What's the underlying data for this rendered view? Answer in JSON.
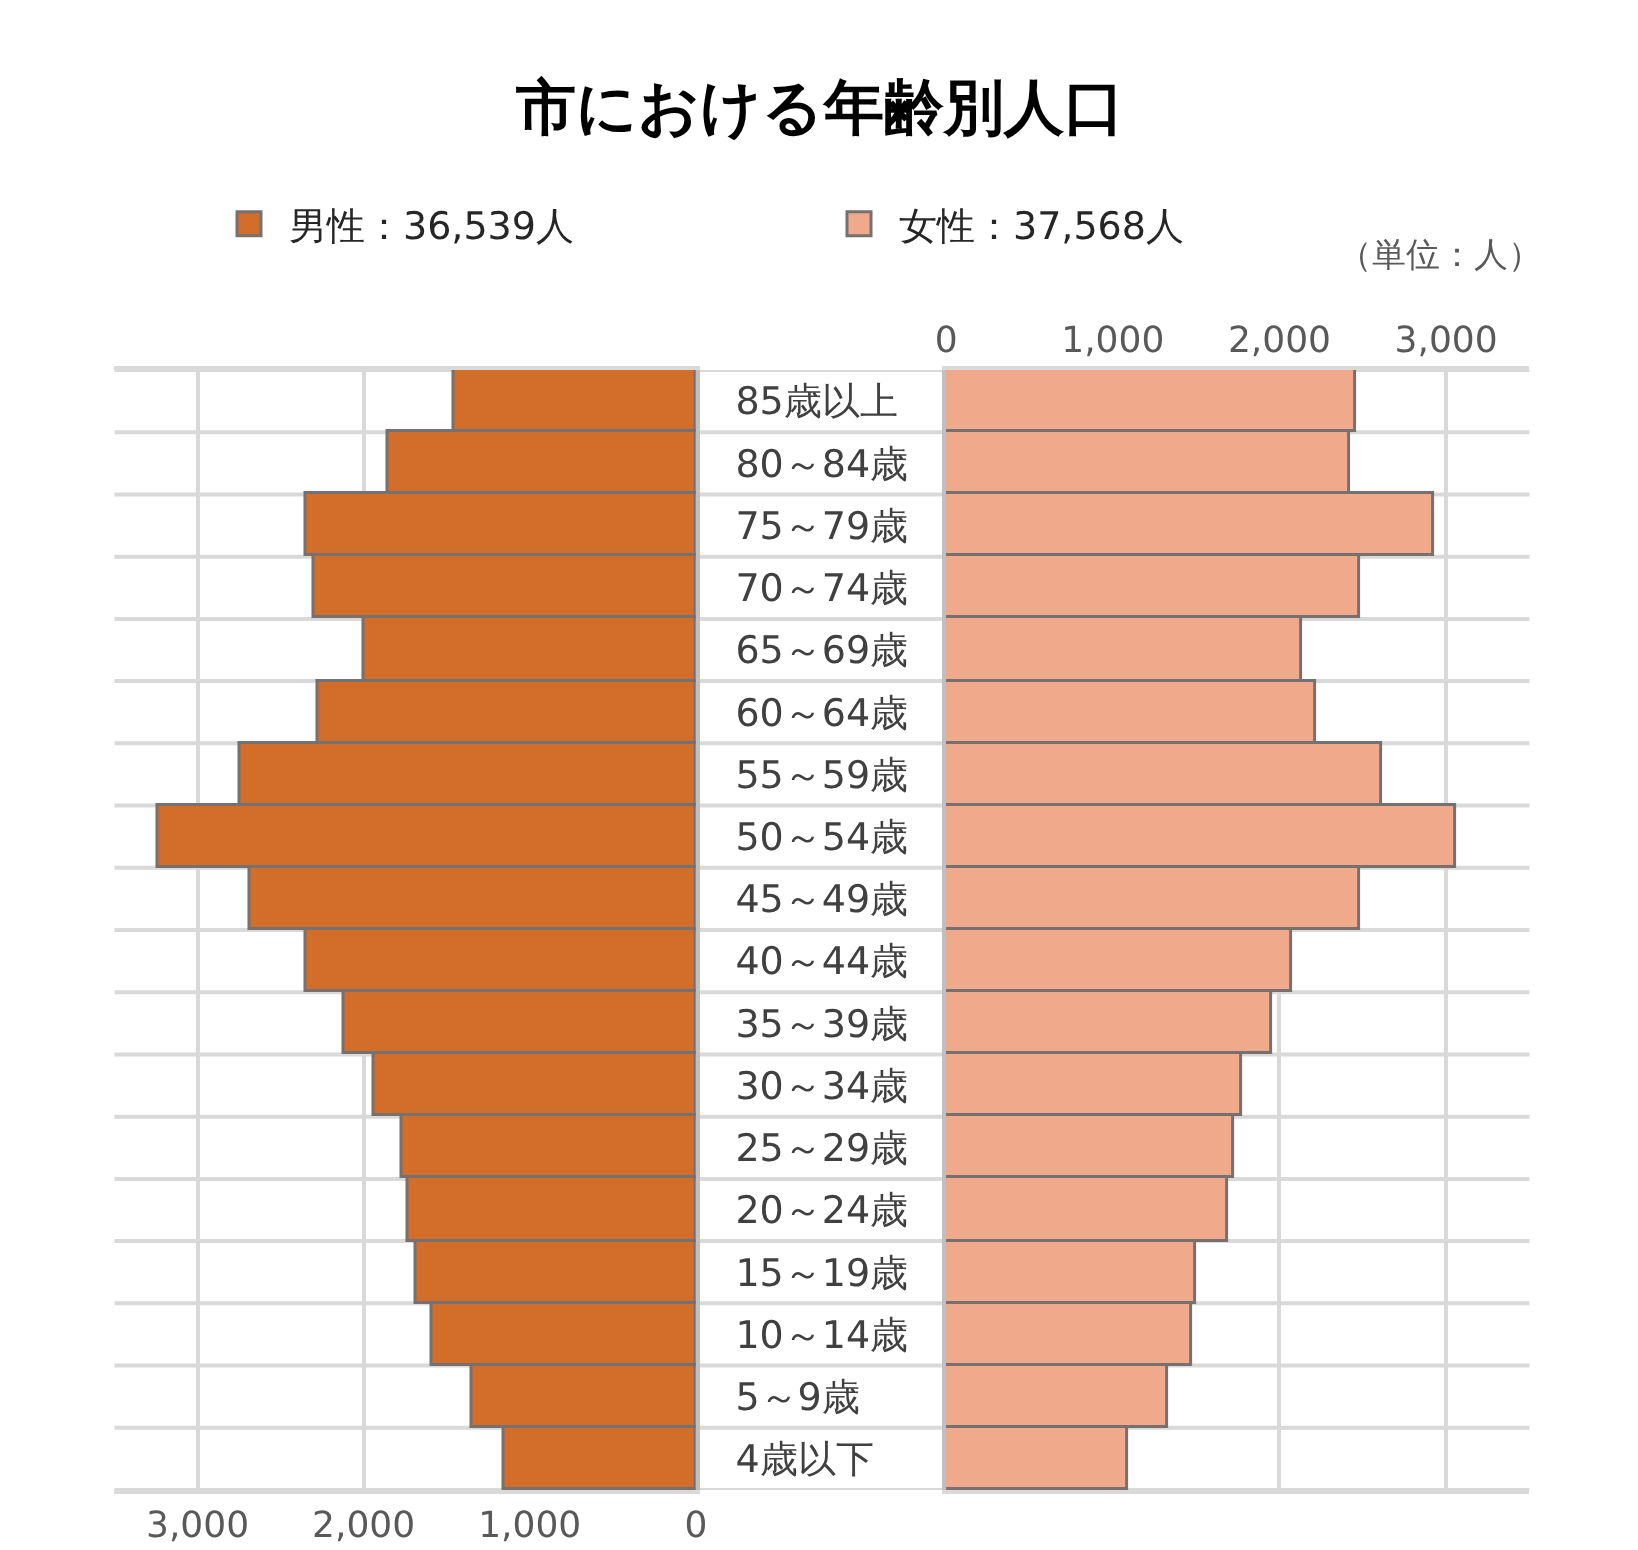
{
  "chart_data": [
    {
      "type": "bar",
      "orientation": "horizontal",
      "title": "市における年齢別人口",
      "categories": [
        "85歳以上",
        "80～84歳",
        "75～79歳",
        "70～74歳",
        "65～69歳",
        "60～64歳",
        "55～59歳",
        "50～54歳",
        "45～49歳",
        "40～44歳",
        "35～39歳",
        "30～34歳",
        "25～29歳",
        "20～24歳",
        "15～19歳",
        "10～14歳",
        "5～9歳",
        "4歳以下"
      ],
      "series": [
        {
          "name": "男性：36,539人",
          "color": "#d26e2a",
          "values": [
            1450,
            1850,
            2340,
            2300,
            2000,
            2270,
            2740,
            3230,
            2680,
            2340,
            2110,
            1930,
            1770,
            1730,
            1680,
            1580,
            1350,
            1150
          ]
        }
      ],
      "xlim": [
        3500,
        0
      ],
      "xticks": [
        {
          "value": 3000,
          "label": "3,000"
        },
        {
          "value": 2000,
          "label": "2,000"
        },
        {
          "value": 1000,
          "label": "1,000"
        },
        0
      ],
      "grid": true,
      "legend": "top"
    },
    {
      "type": "bar",
      "orientation": "horizontal",
      "categories": [
        null,
        null,
        null,
        null,
        null,
        null,
        null,
        null,
        null,
        null,
        null,
        null,
        null,
        null,
        null,
        null,
        null,
        null
      ],
      "series": [
        {
          "name": "女性：37,568人",
          "color": "#f0a98a",
          "values": [
            2460,
            2420,
            2930,
            2480,
            2140,
            2220,
            2610,
            3060,
            2480,
            2070,
            1950,
            1780,
            1730,
            1690,
            1500,
            1480,
            1330,
            1090
          ]
        }
      ],
      "xlim": [
        0,
        3500
      ],
      "xticks": [
        0,
        {
          "value": 1000,
          "label": "1,000"
        },
        {
          "value": 2000,
          "label": "2,000"
        },
        {
          "value": 3000,
          "label": "3,000"
        }
      ],
      "grid": true,
      "legend": "top",
      "tick_labels": "x",
      "annotations": [
        "（単位：人）"
      ]
    }
  ]
}
